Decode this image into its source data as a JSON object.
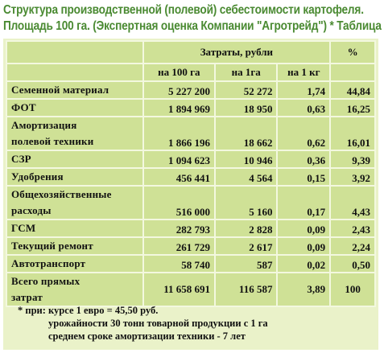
{
  "title": {
    "line1": "Структура производственной (полевой) себестоимости картофеля.",
    "line2": "Площадь 100 га. (Экспертная оценка Компании \"Агротрейд\") * Таблица 2"
  },
  "table": {
    "header": {
      "costs": "Затраты, рубли",
      "percent": "%",
      "per_100ha": "на 100 га",
      "per_1ha": "на 1га",
      "per_1kg": "на 1 кг"
    },
    "rows": [
      {
        "label": "Семенной материал",
        "per_100ha": "5 227 200",
        "per_1ha": "52 272",
        "per_1kg": "1,74",
        "percent": "44,84"
      },
      {
        "label": "ФОТ",
        "per_100ha": "1 894 969",
        "per_1ha": "18 950",
        "per_1kg": "0,63",
        "percent": "16,25"
      },
      {
        "label": "Амортизация полевой техники",
        "label_line1": "Амортизация",
        "label_line2": "полевой техники",
        "per_100ha": "1 866 196",
        "per_1ha": "18 662",
        "per_1kg": "0,62",
        "percent": "16,01"
      },
      {
        "label": "СЗР",
        "per_100ha": "1 094 623",
        "per_1ha": "10 946",
        "per_1kg": "0,36",
        "percent": "9,39"
      },
      {
        "label": "Удобрения",
        "per_100ha": "456 441",
        "per_1ha": "4 564",
        "per_1kg": "0,15",
        "percent": "3,92"
      },
      {
        "label": "Общехозяйственные расходы",
        "label_line1": "Общехозяйственные",
        "label_line2": "расходы",
        "per_100ha": "516 000",
        "per_1ha": "5 160",
        "per_1kg": "0,17",
        "percent": "4,43"
      },
      {
        "label": "ГСМ",
        "per_100ha": "282 793",
        "per_1ha": "2 828",
        "per_1kg": "0,09",
        "percent": "2,43"
      },
      {
        "label": "Текущий ремонт",
        "per_100ha": "261 729",
        "per_1ha": "2 617",
        "per_1kg": "0,09",
        "percent": "2,24"
      },
      {
        "label": "Автотранспорт",
        "per_100ha": "58 740",
        "per_1ha": "587",
        "per_1kg": "0,02",
        "percent": "0,50"
      }
    ],
    "total": {
      "label_line1": "Всего прямых",
      "label_line2": "затрат",
      "per_100ha": "11 658 691",
      "per_1ha": "116 587",
      "per_1kg": "3,89",
      "percent": "100"
    }
  },
  "notes": {
    "line1": "* при: курсе 1 евро = 45,50 руб.",
    "line2": "урожайности 30 тонн товарной продукции с 1 га",
    "line3": "среднем сроке амортизации техники - 7 лет"
  }
}
